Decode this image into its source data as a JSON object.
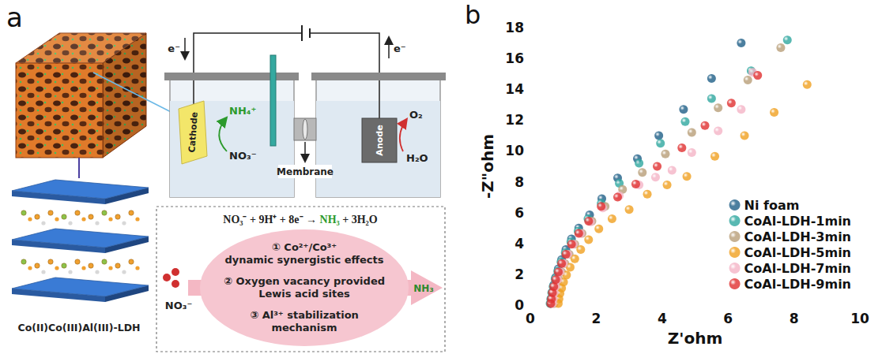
{
  "diagram": {
    "panel_label": "a",
    "cell": {
      "electron_left": "e⁻",
      "electron_right": "e⁻",
      "cathode": "Cathode",
      "cathode_product": "NH₄⁺",
      "cathode_reactant": "NO₃⁻",
      "membrane": "Membrane",
      "anode": "Anode",
      "anode_product": "O₂",
      "anode_reactant": "H₂O"
    },
    "material": "Co(II)Co(III)Al(III)-LDH",
    "mechanism": {
      "equation": "NO₃⁻ + 9H⁺ + 8e⁻ → NH₃ + 3H₂O",
      "reactant": "NO₃⁻",
      "product": "NH₃",
      "points": [
        [
          "① Co²⁺/Co³⁺",
          "dynamic synergistic effects"
        ],
        [
          "② Oxygen vacancy provided",
          "Lewis acid sites"
        ],
        [
          "③ Al³⁺ stabilization",
          "mechanism"
        ]
      ]
    }
  },
  "chart_data": {
    "type": "scatter",
    "panel_label": "b",
    "x_label": "Z'ohm",
    "y_label": "-Z\"ohm",
    "xlim": [
      0,
      10
    ],
    "xticks": [
      0,
      2,
      4,
      6,
      8,
      10
    ],
    "ylim": [
      0,
      18
    ],
    "yticks": [
      0,
      2,
      4,
      6,
      8,
      10,
      12,
      14,
      16,
      18
    ],
    "grid": false,
    "legend": "lower right",
    "marker": "circle",
    "series": [
      {
        "name": "Ni foam",
        "color": "#1f5f87",
        "x": [
          0.62,
          0.64,
          0.67,
          0.71,
          0.77,
          0.85,
          0.95,
          1.08,
          1.25,
          1.47,
          1.8,
          2.17,
          2.65,
          3.25,
          3.9,
          4.65,
          5.5,
          6.4
        ],
        "values": [
          0.1,
          0.45,
          0.85,
          1.3,
          1.8,
          2.35,
          2.95,
          3.6,
          4.3,
          5.0,
          5.85,
          6.9,
          8.25,
          9.5,
          11.0,
          12.7,
          14.7,
          17.0
        ]
      },
      {
        "name": "CoAl-LDH-1min",
        "color": "#2fa79f",
        "x": [
          0.6,
          0.62,
          0.65,
          0.69,
          0.75,
          0.83,
          0.93,
          1.06,
          1.23,
          1.45,
          1.75,
          2.15,
          2.7,
          3.3,
          3.95,
          4.7,
          5.5,
          6.7,
          7.8
        ],
        "values": [
          0.1,
          0.4,
          0.8,
          1.2,
          1.7,
          2.2,
          2.8,
          3.4,
          4.1,
          4.8,
          5.6,
          6.6,
          7.9,
          9.2,
          10.5,
          11.9,
          13.4,
          15.2,
          17.2
        ]
      },
      {
        "name": "CoAl-LDH-3min",
        "color": "#b89e78",
        "x": [
          0.72,
          0.74,
          0.77,
          0.81,
          0.87,
          0.95,
          1.05,
          1.18,
          1.35,
          1.57,
          1.87,
          2.27,
          2.8,
          3.4,
          4.1,
          4.9,
          5.7,
          6.6,
          7.6
        ],
        "values": [
          0.1,
          0.4,
          0.8,
          1.2,
          1.65,
          2.15,
          2.7,
          3.3,
          3.95,
          4.65,
          5.45,
          6.4,
          7.5,
          8.6,
          9.8,
          11.2,
          12.8,
          14.6,
          16.7
        ]
      },
      {
        "name": "CoAl-LDH-5min",
        "color": "#f0a020",
        "x": [
          0.85,
          0.87,
          0.9,
          0.95,
          1.01,
          1.1,
          1.21,
          1.35,
          1.53,
          1.77,
          2.08,
          2.48,
          3.0,
          3.55,
          4.15,
          4.75,
          5.6,
          6.5,
          7.4,
          8.4
        ],
        "values": [
          0.1,
          0.4,
          0.75,
          1.1,
          1.5,
          1.95,
          2.45,
          3.0,
          3.6,
          4.25,
          4.95,
          5.6,
          6.2,
          7.2,
          7.8,
          8.35,
          9.65,
          11.0,
          12.5,
          14.3
        ]
      },
      {
        "name": "CoAl-LDH-7min",
        "color": "#f4b4c6",
        "x": [
          0.68,
          0.7,
          0.73,
          0.77,
          0.83,
          0.91,
          1.01,
          1.14,
          1.31,
          1.53,
          1.83,
          2.2,
          2.7,
          3.3,
          3.8,
          4.3,
          4.9,
          5.7,
          6.4,
          6.75
        ],
        "values": [
          0.1,
          0.4,
          0.8,
          1.2,
          1.65,
          2.15,
          2.7,
          3.3,
          3.95,
          4.65,
          5.4,
          6.3,
          7.1,
          7.8,
          8.3,
          8.75,
          9.9,
          11.3,
          12.7,
          15.1
        ]
      },
      {
        "name": "CoAl-LDH-9min",
        "color": "#e03030",
        "x": [
          0.62,
          0.64,
          0.67,
          0.71,
          0.77,
          0.85,
          0.95,
          1.08,
          1.25,
          1.47,
          1.77,
          2.15,
          2.65,
          3.2,
          3.85,
          4.6,
          5.3,
          6.1,
          6.9
        ],
        "values": [
          0.1,
          0.4,
          0.8,
          1.2,
          1.65,
          2.15,
          2.7,
          3.3,
          3.95,
          4.65,
          5.45,
          6.4,
          7.0,
          7.85,
          9.0,
          10.2,
          11.65,
          13.1,
          14.9
        ]
      }
    ]
  }
}
